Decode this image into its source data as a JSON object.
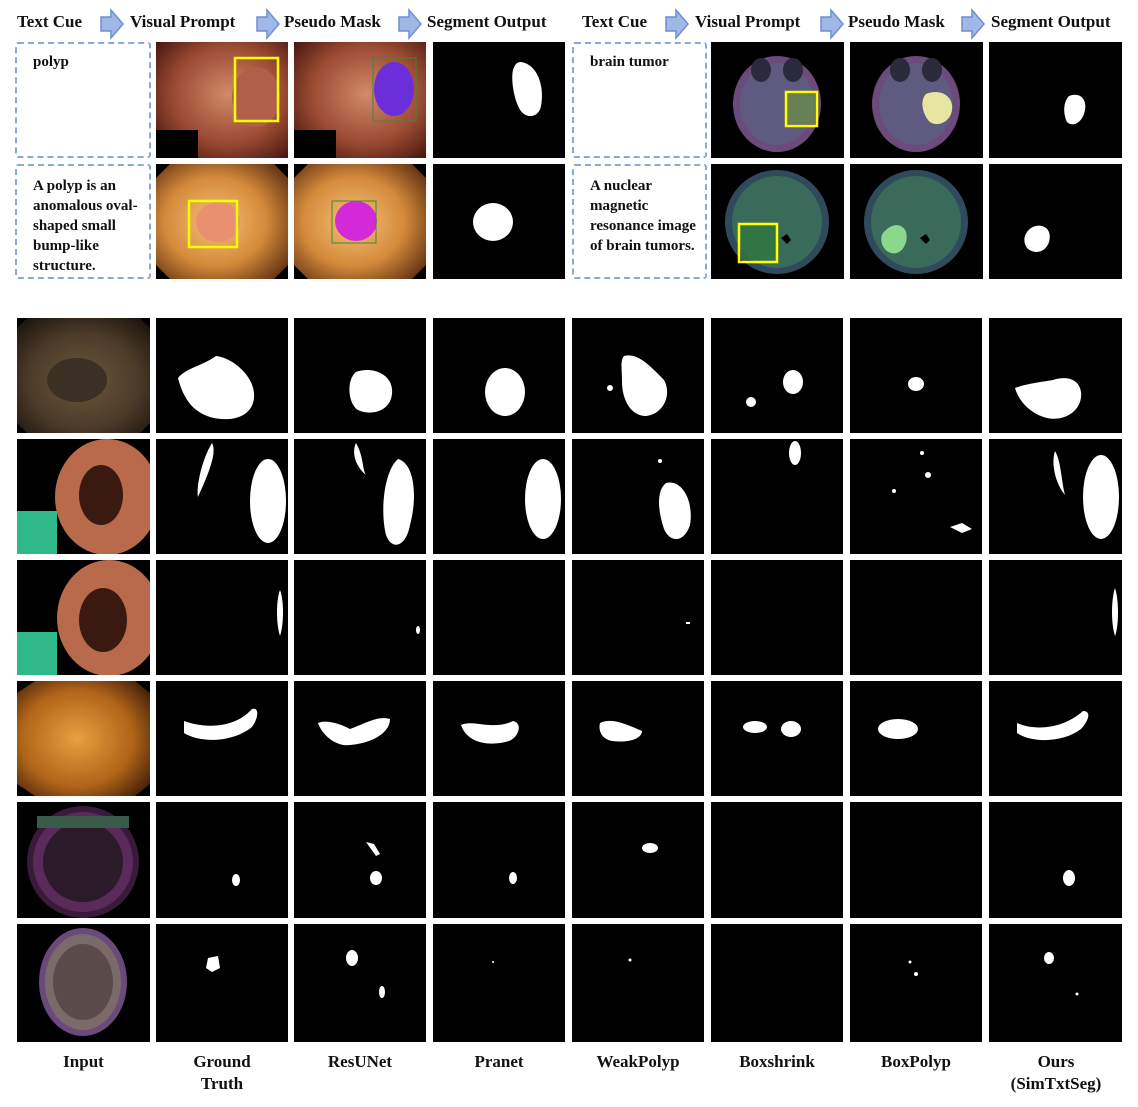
{
  "header_labels": [
    "Text Cue",
    "Visual Prompt",
    "Pseudo Mask",
    "Segment Output",
    "Text Cue",
    "Visual Prompt",
    "Pseudo Mask",
    "Segment Output"
  ],
  "text_cues": {
    "polyp_short": "polyp",
    "polyp_long": "A polyp is an anomalous oval-shaped small bump-like structure.",
    "brain_short": "brain tumor",
    "brain_long": "A nuclear magnetic resonance image of brain tumors."
  },
  "column_labels": [
    "Input",
    "Ground Truth",
    "ResUNet",
    "Pranet",
    "WeakPolyp",
    "Boxshrink",
    "BoxPolyp",
    "Ours (SimTxtSeg)"
  ],
  "colors": {
    "arrow_fill": "#9fb8e6",
    "arrow_stroke": "#6f8fcf",
    "cue_border": "#8aa8d8",
    "box_yellow": "#ffff00",
    "pseudo_polyp_1": "#6a2fd8",
    "pseudo_polyp_2": "#d22ad8",
    "pseudo_brain_1": "#e7e6a0",
    "pseudo_brain_2": "#8ad88a"
  }
}
